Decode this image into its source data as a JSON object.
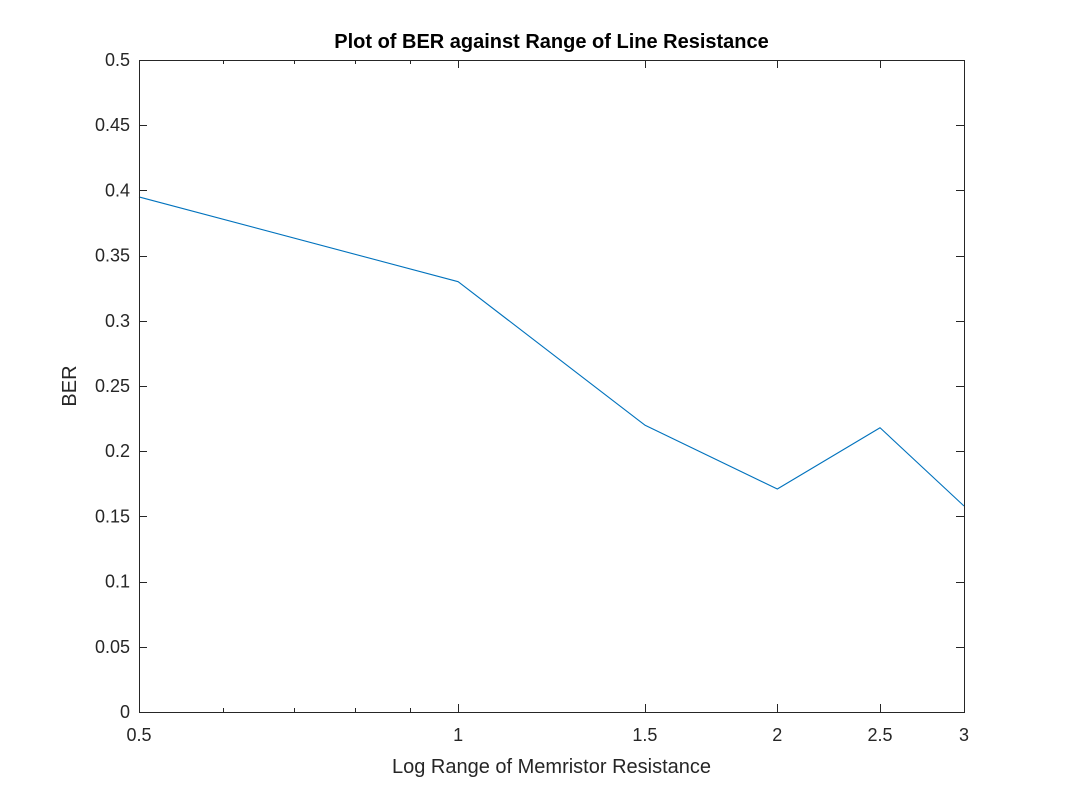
{
  "chart_data": {
    "type": "line",
    "title": "Plot of BER against Range of Line Resistance",
    "xlabel": "Log Range of Memristor Resistance",
    "ylabel": "BER",
    "xscale": "log",
    "xlim": [
      0.5,
      3
    ],
    "ylim": [
      0,
      0.5
    ],
    "grid": false,
    "legend": "none",
    "xticks": [
      0.5,
      1,
      1.5,
      2,
      2.5,
      3
    ],
    "xtick_labels": [
      "0.5",
      "1",
      "1.5",
      "2",
      "2.5",
      "3"
    ],
    "yticks": [
      0,
      0.05,
      0.1,
      0.15,
      0.2,
      0.25,
      0.3,
      0.35,
      0.4,
      0.45,
      0.5
    ],
    "ytick_labels": [
      "0",
      "0.05",
      "0.1",
      "0.15",
      "0.2",
      "0.25",
      "0.3",
      "0.35",
      "0.4",
      "0.45",
      "0.5"
    ],
    "series": [
      {
        "color": "#0072bd",
        "x": [
          0.5,
          1,
          1.5,
          2,
          2.5,
          3
        ],
        "y": [
          0.395,
          0.33,
          0.22,
          0.171,
          0.218,
          0.158
        ]
      }
    ]
  }
}
